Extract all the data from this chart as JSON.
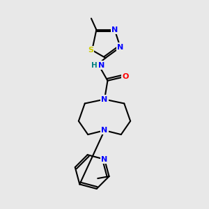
{
  "background_color": "#e8e8e8",
  "title": "",
  "bond_color": "#000000",
  "atom_colors": {
    "N": "#0000ff",
    "S": "#cccc00",
    "O": "#ff0000",
    "H": "#008080",
    "C": "#000000"
  },
  "figsize": [
    3.0,
    3.0
  ],
  "dpi": 100
}
